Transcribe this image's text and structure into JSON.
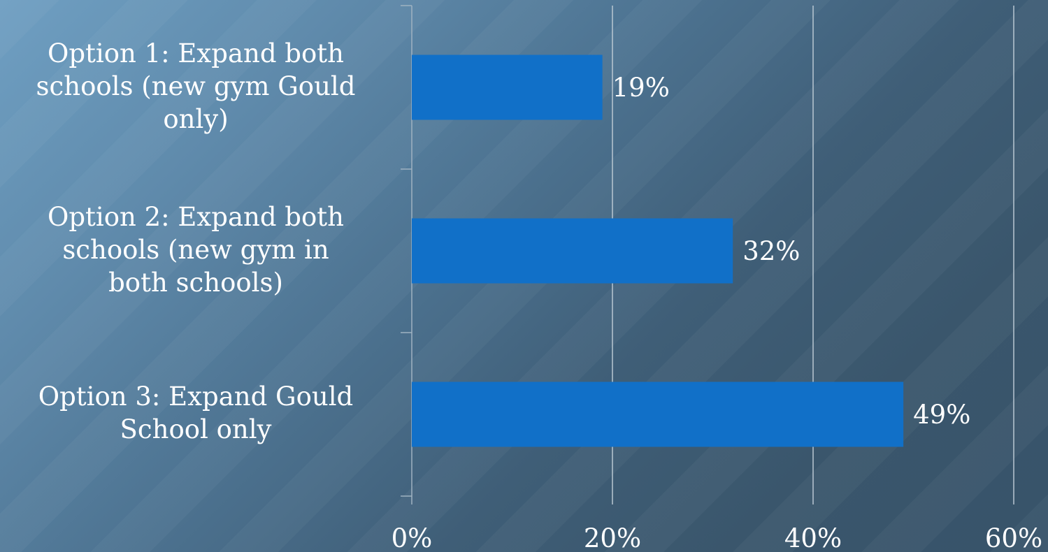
{
  "chart_data": {
    "type": "bar",
    "orientation": "horizontal",
    "categories": [
      "Option 1: Expand both schools (new gym Gould only)",
      "Option 2: Expand both schools (new gym in both schools)",
      "Option 3: Expand Gould School only"
    ],
    "category_lines": [
      [
        "Option 1: Expand both",
        "schools (new gym Gould",
        "only)"
      ],
      [
        "Option 2: Expand both",
        "schools (new gym in",
        "both schools)"
      ],
      [
        "Option 3: Expand Gould",
        "School only"
      ]
    ],
    "values": [
      19,
      32,
      49
    ],
    "data_labels": [
      "19%",
      "32%",
      "49%"
    ],
    "xlim": [
      0,
      60
    ],
    "x_ticks": [
      0,
      20,
      40,
      60
    ],
    "x_tick_labels": [
      "0%",
      "20%",
      "40%",
      "60%"
    ],
    "title": "",
    "xlabel": "",
    "ylabel": "",
    "grid": "vertical",
    "legend": "none",
    "colors": {
      "bar": "#1170c8",
      "gridline": "#b9c7d2",
      "axis": "#9fb2c1",
      "text": "#ffffff"
    }
  }
}
